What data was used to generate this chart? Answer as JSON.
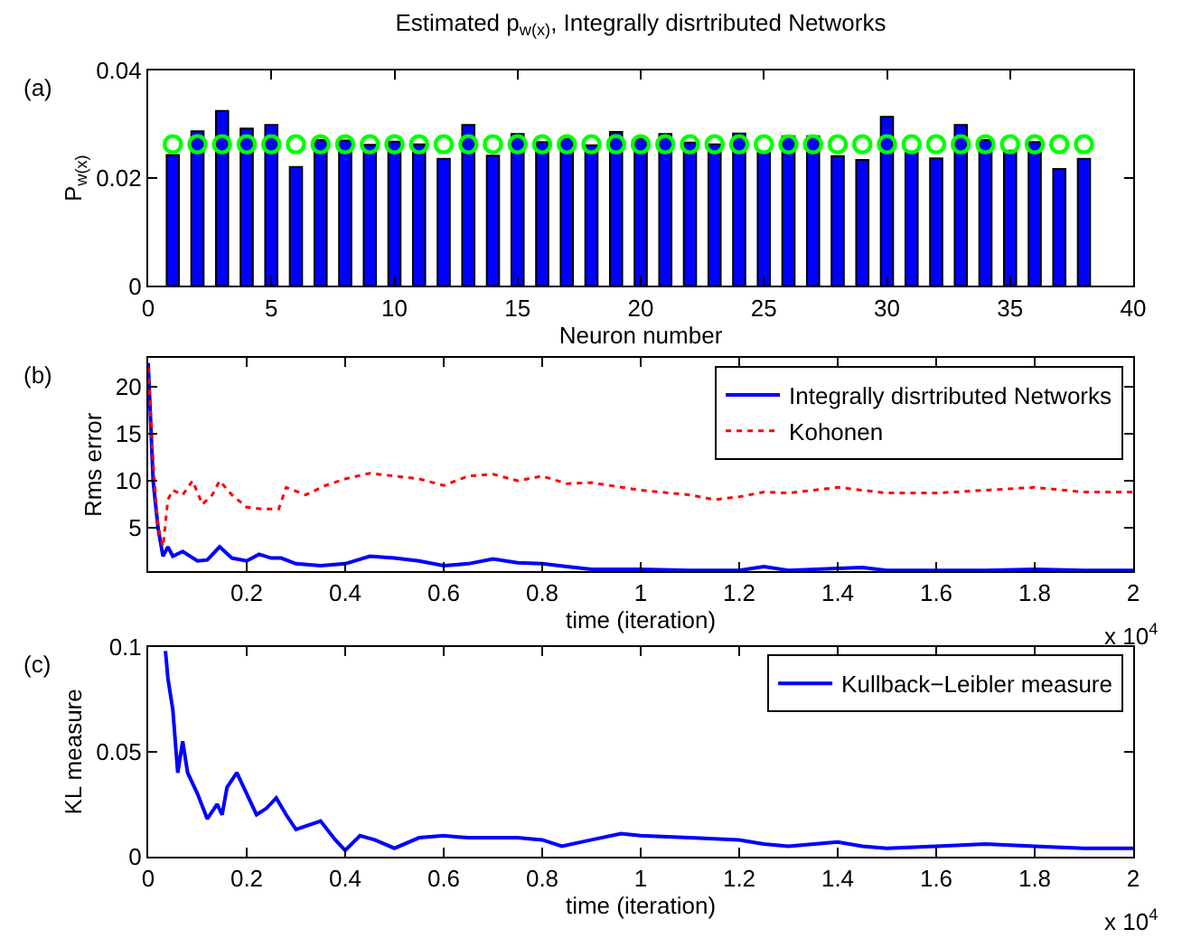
{
  "chart_data": [
    {
      "type": "bar",
      "title": "Estimated p$_{w(x)}$, Integrally disrtributed Networks",
      "xlabel": "Neuron number",
      "ylabel": "P$_{w(x)}$",
      "annotations": [
        "(a)"
      ],
      "x": [
        1,
        2,
        3,
        4,
        5,
        6,
        7,
        8,
        9,
        10,
        11,
        12,
        13,
        14,
        15,
        16,
        17,
        18,
        19,
        20,
        21,
        22,
        23,
        24,
        25,
        26,
        27,
        28,
        29,
        30,
        31,
        32,
        33,
        34,
        35,
        36,
        37,
        38
      ],
      "series": [
        {
          "type": "bar",
          "color": "#0000ff",
          "values": [
            0.0243,
            0.0287,
            0.0325,
            0.0292,
            0.0299,
            0.0221,
            0.0271,
            0.027,
            0.0262,
            0.0268,
            0.0263,
            0.0236,
            0.0299,
            0.0242,
            0.0282,
            0.0267,
            0.0274,
            0.0261,
            0.0286,
            0.0274,
            0.0282,
            0.0266,
            0.0263,
            0.0283,
            0.0247,
            0.0278,
            0.0278,
            0.0241,
            0.0234,
            0.0314,
            0.0247,
            0.0237,
            0.0299,
            0.0271,
            0.0251,
            0.0267,
            0.0217,
            0.0236
          ]
        },
        {
          "type": "scatter",
          "color": "#00ff00",
          "marker": "circle",
          "values": [
            0.0263,
            0.0263,
            0.0263,
            0.0263,
            0.0263,
            0.0263,
            0.0263,
            0.0263,
            0.0263,
            0.0263,
            0.0263,
            0.0263,
            0.0263,
            0.0263,
            0.0263,
            0.0263,
            0.0263,
            0.0263,
            0.0263,
            0.0263,
            0.0263,
            0.0263,
            0.0263,
            0.0263,
            0.0263,
            0.0263,
            0.0263,
            0.0263,
            0.0263,
            0.0263,
            0.0263,
            0.0263,
            0.0263,
            0.0263,
            0.0263,
            0.0263,
            0.0263,
            0.0263
          ]
        }
      ],
      "xlim": [
        0,
        40
      ],
      "xticks": [
        0,
        5,
        10,
        15,
        20,
        25,
        30,
        35,
        40
      ],
      "ylim": [
        0,
        0.04
      ],
      "yticks": [
        0,
        0.02,
        0.04
      ],
      "legend": false
    },
    {
      "type": "line",
      "xlabel": "time (iteration)",
      "ylabel": "Rms error",
      "annotations": [
        "(b)",
        "x 10$^{4}$"
      ],
      "legend": "top right",
      "series": [
        {
          "name": "Integrally disrtributed Networks",
          "color": "#0000ff",
          "line_style": "solid",
          "x": [
            0,
            0.01,
            0.02,
            0.03,
            0.04,
            0.05,
            0.07,
            0.1,
            0.12,
            0.145,
            0.17,
            0.2,
            0.225,
            0.25,
            0.27,
            0.3,
            0.35,
            0.4,
            0.45,
            0.5,
            0.55,
            0.6,
            0.65,
            0.7,
            0.75,
            0.8,
            0.85,
            0.9,
            1,
            1.1,
            1.2,
            1.25,
            1.3,
            1.4,
            1.45,
            1.5,
            1.6,
            1.7,
            1.8,
            1.9,
            2
          ],
          "values": [
            22.5,
            10,
            5,
            2,
            3,
            2,
            2.5,
            1.5,
            1.6,
            3,
            1.8,
            1.5,
            2.2,
            1.8,
            1.8,
            1.2,
            1,
            1.2,
            2,
            1.8,
            1.5,
            1,
            1.2,
            1.7,
            1.3,
            1.2,
            0.9,
            0.6,
            0.6,
            0.5,
            0.5,
            0.9,
            0.5,
            0.7,
            0.8,
            0.5,
            0.5,
            0.5,
            0.6,
            0.5,
            0.5
          ]
        },
        {
          "name": "Kohonen",
          "color": "#ff0000",
          "line_style": "dotted",
          "x": [
            0,
            0.01,
            0.02,
            0.03,
            0.04,
            0.05,
            0.07,
            0.09,
            0.11,
            0.13,
            0.145,
            0.17,
            0.2,
            0.23,
            0.265,
            0.28,
            0.32,
            0.36,
            0.4,
            0.45,
            0.5,
            0.55,
            0.6,
            0.65,
            0.7,
            0.75,
            0.8,
            0.85,
            0.9,
            1,
            1.1,
            1.15,
            1.2,
            1.25,
            1.3,
            1.4,
            1.5,
            1.6,
            1.7,
            1.8,
            1.9,
            2
          ],
          "values": [
            22,
            12,
            5,
            3,
            8,
            9,
            8.5,
            10,
            7.5,
            8.5,
            10,
            8.5,
            7.2,
            7,
            7,
            9.3,
            8.5,
            9.5,
            10.2,
            10.8,
            10.5,
            10.2,
            9.5,
            10.5,
            10.7,
            10,
            10.5,
            9.7,
            9.8,
            9,
            8.5,
            8,
            8.3,
            8.8,
            8.7,
            9.3,
            8.7,
            8.7,
            9,
            9.3,
            8.8,
            8.8
          ]
        }
      ],
      "xlim": [
        0,
        2
      ],
      "xticks": [
        0.2,
        0.4,
        0.6,
        0.8,
        1,
        1.2,
        1.4,
        1.6,
        1.8,
        2
      ],
      "ylim": [
        0.4,
        23
      ],
      "yticks": [
        5,
        10,
        15,
        20
      ]
    },
    {
      "type": "line",
      "xlabel": "time (iteration)",
      "ylabel": "KL measure",
      "annotations": [
        "(c)",
        "x 10$^{4}$"
      ],
      "legend": "top right",
      "series": [
        {
          "name": "Kullback−Leibler measure",
          "color": "#0000ff",
          "line_style": "solid",
          "x": [
            0.035,
            0.04,
            0.05,
            0.06,
            0.07,
            0.08,
            0.1,
            0.12,
            0.14,
            0.15,
            0.16,
            0.18,
            0.2,
            0.22,
            0.24,
            0.26,
            0.28,
            0.3,
            0.35,
            0.38,
            0.4,
            0.43,
            0.46,
            0.5,
            0.55,
            0.6,
            0.65,
            0.7,
            0.75,
            0.8,
            0.84,
            0.9,
            0.96,
            1,
            1.1,
            1.2,
            1.25,
            1.3,
            1.4,
            1.45,
            1.5,
            1.6,
            1.7,
            1.8,
            1.9,
            2
          ],
          "values": [
            0.098,
            0.085,
            0.07,
            0.04,
            0.055,
            0.04,
            0.03,
            0.018,
            0.025,
            0.02,
            0.033,
            0.04,
            0.03,
            0.02,
            0.023,
            0.028,
            0.02,
            0.013,
            0.017,
            0.008,
            0.003,
            0.01,
            0.008,
            0.004,
            0.009,
            0.01,
            0.009,
            0.009,
            0.009,
            0.008,
            0.005,
            0.008,
            0.011,
            0.01,
            0.009,
            0.008,
            0.006,
            0.005,
            0.007,
            0.005,
            0.004,
            0.005,
            0.006,
            0.005,
            0.004,
            0.004
          ]
        }
      ],
      "xlim": [
        0,
        2
      ],
      "xticks": [
        0,
        0.2,
        0.4,
        0.6,
        0.8,
        1,
        1.2,
        1.4,
        1.6,
        1.8,
        2
      ],
      "ylim": [
        0,
        0.1
      ],
      "yticks": [
        0,
        0.05,
        0.1
      ]
    }
  ]
}
